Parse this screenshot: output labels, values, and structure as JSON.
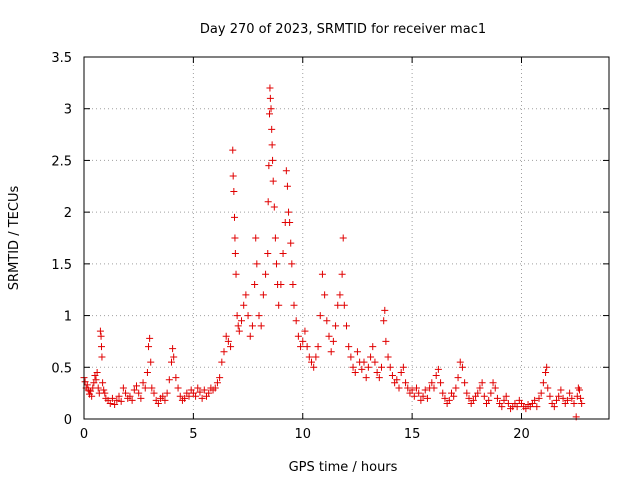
{
  "chart_data": {
    "type": "scatter",
    "title": "Day 270 of 2023, SRMTID for receiver mac1",
    "xlabel": "GPS time / hours",
    "ylabel": "SRMTID / TECUs",
    "xlim": [
      0,
      24.0
    ],
    "ylim": [
      0,
      3.5
    ],
    "grid": true,
    "marker": "plus",
    "color": "#e00000",
    "x_ticks": [
      0,
      5,
      10,
      15,
      20
    ],
    "x_tick_labels": [
      "0",
      "5",
      "10",
      "15",
      "20"
    ],
    "y_ticks": [
      0,
      0.5,
      1,
      1.5,
      2,
      2.5,
      3,
      3.5
    ],
    "y_tick_labels": [
      "0",
      "0.5",
      "1",
      "1.5",
      "2",
      "2.5",
      "3",
      "3.5"
    ],
    "series": [
      {
        "name": "mac1",
        "points": [
          [
            0.0,
            0.4
          ],
          [
            0.05,
            0.36
          ],
          [
            0.1,
            0.3
          ],
          [
            0.15,
            0.33
          ],
          [
            0.2,
            0.28
          ],
          [
            0.25,
            0.24
          ],
          [
            0.3,
            0.27
          ],
          [
            0.35,
            0.22
          ],
          [
            0.4,
            0.3
          ],
          [
            0.45,
            0.35
          ],
          [
            0.5,
            0.42
          ],
          [
            0.55,
            0.38
          ],
          [
            0.6,
            0.45
          ],
          [
            0.65,
            0.3
          ],
          [
            0.7,
            0.25
          ],
          [
            0.75,
            0.85
          ],
          [
            0.78,
            0.8
          ],
          [
            0.8,
            0.7
          ],
          [
            0.82,
            0.6
          ],
          [
            0.85,
            0.35
          ],
          [
            0.9,
            0.28
          ],
          [
            0.95,
            0.25
          ],
          [
            1.0,
            0.2
          ],
          [
            1.1,
            0.18
          ],
          [
            1.2,
            0.15
          ],
          [
            1.3,
            0.2
          ],
          [
            1.4,
            0.14
          ],
          [
            1.5,
            0.18
          ],
          [
            1.6,
            0.22
          ],
          [
            1.7,
            0.17
          ],
          [
            1.8,
            0.3
          ],
          [
            1.9,
            0.25
          ],
          [
            2.0,
            0.2
          ],
          [
            2.1,
            0.22
          ],
          [
            2.2,
            0.18
          ],
          [
            2.3,
            0.28
          ],
          [
            2.4,
            0.32
          ],
          [
            2.5,
            0.25
          ],
          [
            2.6,
            0.2
          ],
          [
            2.7,
            0.35
          ],
          [
            2.8,
            0.3
          ],
          [
            2.9,
            0.45
          ],
          [
            2.95,
            0.7
          ],
          [
            3.0,
            0.78
          ],
          [
            3.05,
            0.55
          ],
          [
            3.1,
            0.3
          ],
          [
            3.2,
            0.25
          ],
          [
            3.3,
            0.18
          ],
          [
            3.4,
            0.15
          ],
          [
            3.5,
            0.2
          ],
          [
            3.6,
            0.22
          ],
          [
            3.7,
            0.18
          ],
          [
            3.8,
            0.25
          ],
          [
            3.9,
            0.38
          ],
          [
            4.0,
            0.55
          ],
          [
            4.05,
            0.68
          ],
          [
            4.1,
            0.6
          ],
          [
            4.2,
            0.4
          ],
          [
            4.3,
            0.3
          ],
          [
            4.4,
            0.22
          ],
          [
            4.5,
            0.18
          ],
          [
            4.6,
            0.2
          ],
          [
            4.7,
            0.25
          ],
          [
            4.8,
            0.22
          ],
          [
            4.9,
            0.28
          ],
          [
            5.0,
            0.25
          ],
          [
            5.1,
            0.22
          ],
          [
            5.2,
            0.3
          ],
          [
            5.3,
            0.26
          ],
          [
            5.4,
            0.2
          ],
          [
            5.5,
            0.28
          ],
          [
            5.6,
            0.22
          ],
          [
            5.7,
            0.25
          ],
          [
            5.8,
            0.3
          ],
          [
            5.9,
            0.28
          ],
          [
            6.0,
            0.3
          ],
          [
            6.1,
            0.35
          ],
          [
            6.2,
            0.4
          ],
          [
            6.3,
            0.55
          ],
          [
            6.4,
            0.65
          ],
          [
            6.5,
            0.8
          ],
          [
            6.6,
            0.75
          ],
          [
            6.7,
            0.7
          ],
          [
            6.8,
            2.6
          ],
          [
            6.82,
            2.35
          ],
          [
            6.85,
            2.2
          ],
          [
            6.88,
            1.95
          ],
          [
            6.9,
            1.75
          ],
          [
            6.92,
            1.6
          ],
          [
            6.95,
            1.4
          ],
          [
            7.0,
            1.0
          ],
          [
            7.05,
            0.9
          ],
          [
            7.1,
            0.85
          ],
          [
            7.2,
            0.95
          ],
          [
            7.3,
            1.1
          ],
          [
            7.4,
            1.2
          ],
          [
            7.5,
            1.0
          ],
          [
            7.6,
            0.8
          ],
          [
            7.7,
            0.9
          ],
          [
            7.8,
            1.3
          ],
          [
            7.85,
            1.75
          ],
          [
            7.9,
            1.5
          ],
          [
            8.0,
            1.0
          ],
          [
            8.1,
            0.9
          ],
          [
            8.2,
            1.2
          ],
          [
            8.3,
            1.4
          ],
          [
            8.4,
            1.6
          ],
          [
            8.42,
            2.1
          ],
          [
            8.45,
            2.45
          ],
          [
            8.48,
            2.95
          ],
          [
            8.5,
            3.2
          ],
          [
            8.52,
            3.1
          ],
          [
            8.55,
            3.0
          ],
          [
            8.58,
            2.8
          ],
          [
            8.6,
            2.65
          ],
          [
            8.62,
            2.5
          ],
          [
            8.65,
            2.3
          ],
          [
            8.7,
            2.05
          ],
          [
            8.75,
            1.75
          ],
          [
            8.8,
            1.5
          ],
          [
            8.85,
            1.3
          ],
          [
            8.9,
            1.1
          ],
          [
            9.0,
            1.3
          ],
          [
            9.1,
            1.6
          ],
          [
            9.2,
            1.9
          ],
          [
            9.25,
            2.4
          ],
          [
            9.3,
            2.25
          ],
          [
            9.35,
            2.0
          ],
          [
            9.4,
            1.9
          ],
          [
            9.45,
            1.7
          ],
          [
            9.5,
            1.5
          ],
          [
            9.55,
            1.3
          ],
          [
            9.6,
            1.1
          ],
          [
            9.7,
            0.95
          ],
          [
            9.8,
            0.8
          ],
          [
            9.9,
            0.7
          ],
          [
            10.0,
            0.75
          ],
          [
            10.1,
            0.85
          ],
          [
            10.2,
            0.7
          ],
          [
            10.3,
            0.6
          ],
          [
            10.4,
            0.55
          ],
          [
            10.5,
            0.5
          ],
          [
            10.6,
            0.6
          ],
          [
            10.7,
            0.7
          ],
          [
            10.8,
            1.0
          ],
          [
            10.9,
            1.4
          ],
          [
            11.0,
            1.2
          ],
          [
            11.1,
            0.95
          ],
          [
            11.2,
            0.8
          ],
          [
            11.3,
            0.65
          ],
          [
            11.4,
            0.75
          ],
          [
            11.5,
            0.9
          ],
          [
            11.6,
            1.1
          ],
          [
            11.7,
            1.2
          ],
          [
            11.8,
            1.4
          ],
          [
            11.85,
            1.75
          ],
          [
            11.9,
            1.1
          ],
          [
            12.0,
            0.9
          ],
          [
            12.1,
            0.7
          ],
          [
            12.2,
            0.6
          ],
          [
            12.3,
            0.5
          ],
          [
            12.4,
            0.45
          ],
          [
            12.5,
            0.65
          ],
          [
            12.6,
            0.55
          ],
          [
            12.7,
            0.48
          ],
          [
            12.8,
            0.55
          ],
          [
            12.9,
            0.4
          ],
          [
            13.0,
            0.5
          ],
          [
            13.1,
            0.6
          ],
          [
            13.2,
            0.7
          ],
          [
            13.3,
            0.55
          ],
          [
            13.4,
            0.45
          ],
          [
            13.5,
            0.4
          ],
          [
            13.6,
            0.5
          ],
          [
            13.7,
            0.95
          ],
          [
            13.75,
            1.05
          ],
          [
            13.8,
            0.75
          ],
          [
            13.9,
            0.6
          ],
          [
            14.0,
            0.5
          ],
          [
            14.1,
            0.42
          ],
          [
            14.2,
            0.35
          ],
          [
            14.3,
            0.38
          ],
          [
            14.4,
            0.3
          ],
          [
            14.5,
            0.45
          ],
          [
            14.6,
            0.5
          ],
          [
            14.7,
            0.35
          ],
          [
            14.8,
            0.3
          ],
          [
            14.9,
            0.25
          ],
          [
            15.0,
            0.28
          ],
          [
            15.1,
            0.22
          ],
          [
            15.2,
            0.3
          ],
          [
            15.3,
            0.25
          ],
          [
            15.4,
            0.18
          ],
          [
            15.5,
            0.22
          ],
          [
            15.6,
            0.28
          ],
          [
            15.7,
            0.2
          ],
          [
            15.8,
            0.3
          ],
          [
            15.9,
            0.35
          ],
          [
            16.0,
            0.3
          ],
          [
            16.1,
            0.42
          ],
          [
            16.2,
            0.48
          ],
          [
            16.3,
            0.35
          ],
          [
            16.4,
            0.25
          ],
          [
            16.5,
            0.2
          ],
          [
            16.6,
            0.15
          ],
          [
            16.7,
            0.18
          ],
          [
            16.8,
            0.25
          ],
          [
            16.9,
            0.22
          ],
          [
            17.0,
            0.3
          ],
          [
            17.1,
            0.4
          ],
          [
            17.2,
            0.55
          ],
          [
            17.3,
            0.5
          ],
          [
            17.4,
            0.35
          ],
          [
            17.5,
            0.25
          ],
          [
            17.6,
            0.2
          ],
          [
            17.7,
            0.15
          ],
          [
            17.8,
            0.18
          ],
          [
            17.9,
            0.22
          ],
          [
            18.0,
            0.25
          ],
          [
            18.1,
            0.3
          ],
          [
            18.2,
            0.35
          ],
          [
            18.3,
            0.22
          ],
          [
            18.4,
            0.15
          ],
          [
            18.5,
            0.18
          ],
          [
            18.6,
            0.25
          ],
          [
            18.7,
            0.35
          ],
          [
            18.8,
            0.3
          ],
          [
            18.9,
            0.2
          ],
          [
            19.0,
            0.15
          ],
          [
            19.1,
            0.12
          ],
          [
            19.2,
            0.18
          ],
          [
            19.3,
            0.22
          ],
          [
            19.4,
            0.15
          ],
          [
            19.5,
            0.1
          ],
          [
            19.6,
            0.12
          ],
          [
            19.7,
            0.15
          ],
          [
            19.8,
            0.12
          ],
          [
            19.9,
            0.18
          ],
          [
            20.0,
            0.15
          ],
          [
            20.1,
            0.12
          ],
          [
            20.2,
            0.1
          ],
          [
            20.3,
            0.14
          ],
          [
            20.4,
            0.12
          ],
          [
            20.5,
            0.15
          ],
          [
            20.6,
            0.18
          ],
          [
            20.7,
            0.12
          ],
          [
            20.8,
            0.2
          ],
          [
            20.9,
            0.25
          ],
          [
            21.0,
            0.35
          ],
          [
            21.1,
            0.45
          ],
          [
            21.15,
            0.5
          ],
          [
            21.2,
            0.3
          ],
          [
            21.3,
            0.22
          ],
          [
            21.4,
            0.15
          ],
          [
            21.5,
            0.12
          ],
          [
            21.6,
            0.18
          ],
          [
            21.7,
            0.22
          ],
          [
            21.8,
            0.28
          ],
          [
            21.9,
            0.2
          ],
          [
            22.0,
            0.15
          ],
          [
            22.1,
            0.18
          ],
          [
            22.2,
            0.25
          ],
          [
            22.3,
            0.2
          ],
          [
            22.4,
            0.15
          ],
          [
            22.5,
            0.02
          ],
          [
            22.55,
            0.22
          ],
          [
            22.6,
            0.3
          ],
          [
            22.65,
            0.28
          ],
          [
            22.7,
            0.2
          ],
          [
            22.75,
            0.15
          ]
        ]
      }
    ]
  }
}
